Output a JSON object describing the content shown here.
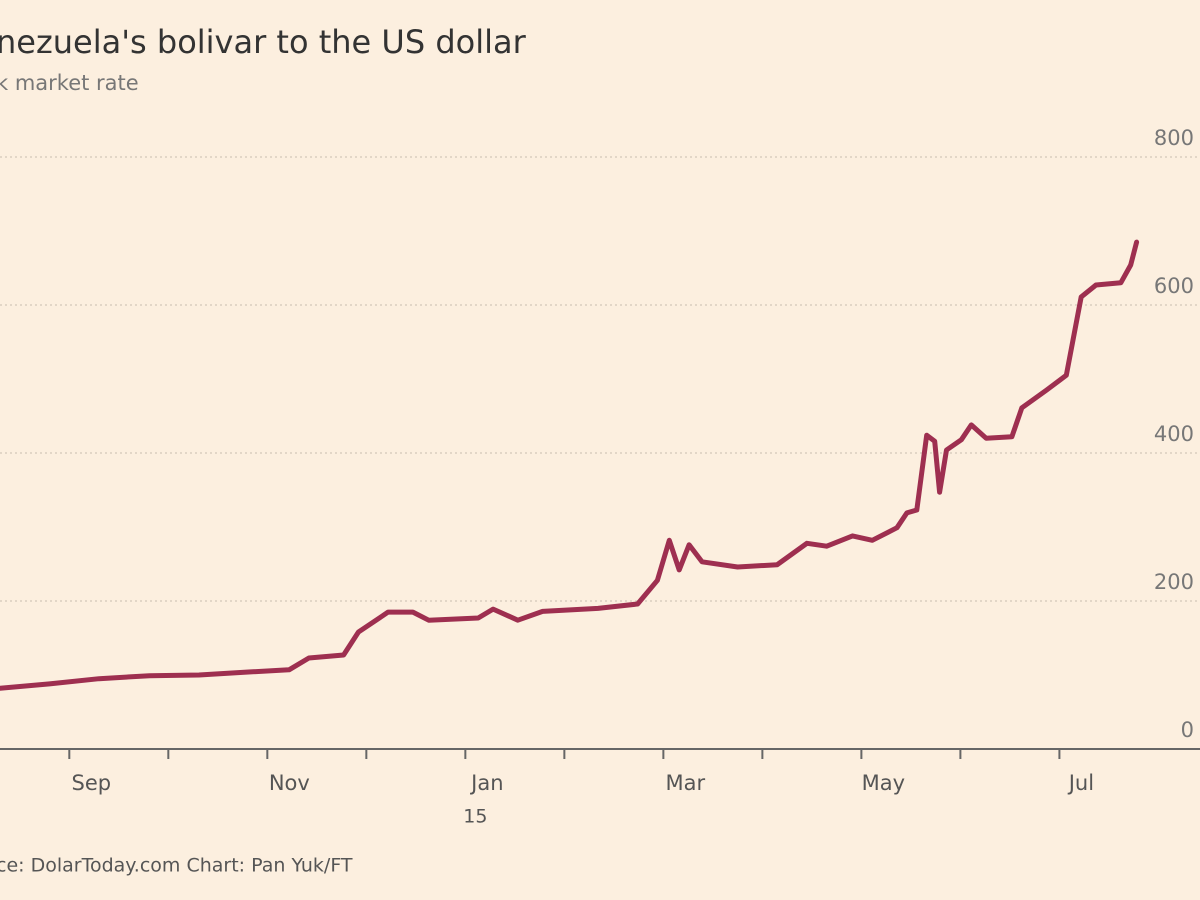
{
  "chart_data": {
    "type": "line",
    "title": "nezuela's bolivar to the US dollar",
    "subtitle": "k market rate",
    "source": "ce: DolarToday.com Chart: Pan Yuk/FT",
    "series": [
      {
        "color": "#9e2f50",
        "x": [
          0.3,
          0.8,
          1.3,
          1.81,
          2.31,
          2.81,
          3.22,
          3.42,
          3.77,
          3.92,
          4.22,
          4.47,
          4.63,
          5.13,
          5.28,
          5.53,
          5.78,
          6.34,
          6.74,
          6.94,
          7.06,
          7.16,
          7.26,
          7.39,
          7.75,
          8.15,
          8.45,
          8.65,
          8.91,
          9.11,
          9.36,
          9.46,
          9.56,
          9.66,
          9.74,
          9.79,
          9.86,
          10.01,
          10.11,
          10.26,
          10.52,
          10.62,
          10.87,
          11.07,
          11.22,
          11.37,
          11.62,
          11.72,
          11.78
        ],
        "values": [
          82,
          88,
          95,
          99,
          100,
          104,
          107,
          123,
          127,
          158,
          185,
          185,
          174,
          177,
          189,
          174,
          186,
          190,
          196,
          228,
          282,
          242,
          276,
          253,
          246,
          249,
          278,
          274,
          288,
          282,
          299,
          319,
          323,
          424,
          416,
          347,
          404,
          418,
          438,
          420,
          422,
          461,
          485,
          505,
          611,
          627,
          630,
          654,
          685
        ]
      }
    ],
    "xlim": [
      0.3,
      12.42
    ],
    "xticks": [
      {
        "value": 1,
        "label": "Sep"
      },
      {
        "value": 3,
        "label": "Nov"
      },
      {
        "value": 5,
        "label": "Jan",
        "sublabel": "15"
      },
      {
        "value": 7,
        "label": "Mar"
      },
      {
        "value": 9,
        "label": "May"
      },
      {
        "value": 11,
        "label": "Jul"
      }
    ],
    "xminor_ticks": [
      2,
      4,
      6,
      8,
      10
    ],
    "ylim": [
      0,
      800
    ],
    "yticks": [
      0,
      200,
      400,
      600,
      800
    ],
    "grid": true
  }
}
